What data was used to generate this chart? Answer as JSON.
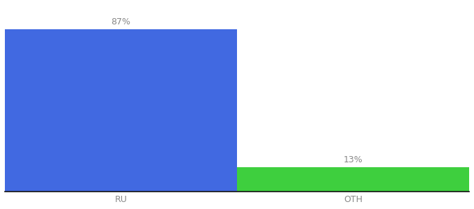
{
  "categories": [
    "RU",
    "OTH"
  ],
  "values": [
    87,
    13
  ],
  "bar_colors": [
    "#4169e1",
    "#3ecf3e"
  ],
  "ylim": [
    0,
    100
  ],
  "bar_width": 0.5,
  "label_fontsize": 9,
  "tick_fontsize": 9,
  "background_color": "#ffffff",
  "label_color": "#888888",
  "tick_color": "#888888",
  "value_labels": [
    "87%",
    "13%"
  ],
  "x_positions": [
    0.25,
    0.75
  ]
}
